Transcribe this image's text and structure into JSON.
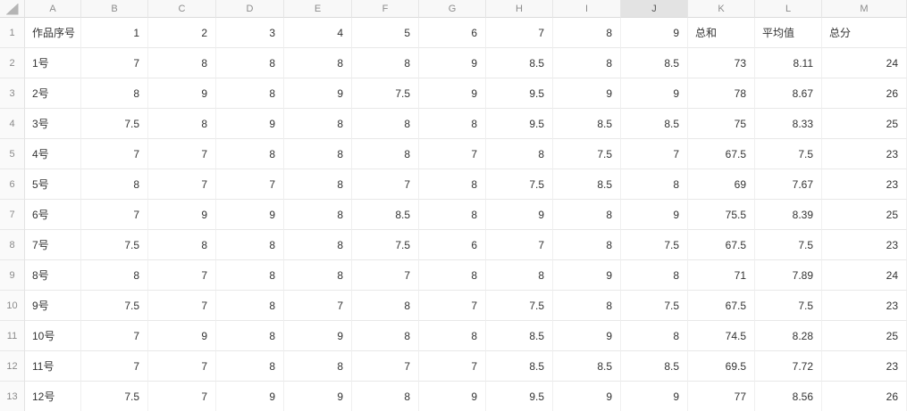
{
  "sheet": {
    "selected_column": "J",
    "column_headers": [
      "A",
      "B",
      "C",
      "D",
      "E",
      "F",
      "G",
      "H",
      "I",
      "J",
      "K",
      "L",
      "M"
    ],
    "rows": [
      {
        "num": 1,
        "cells": [
          "作品序号",
          "1",
          "2",
          "3",
          "4",
          "5",
          "6",
          "7",
          "8",
          "9",
          "总和",
          "平均值",
          "总分"
        ]
      },
      {
        "num": 2,
        "cells": [
          "1号",
          "7",
          "8",
          "8",
          "8",
          "8",
          "9",
          "8.5",
          "8",
          "8.5",
          "73",
          "8.11",
          "24"
        ]
      },
      {
        "num": 3,
        "cells": [
          "2号",
          "8",
          "9",
          "8",
          "9",
          "7.5",
          "9",
          "9.5",
          "9",
          "9",
          "78",
          "8.67",
          "26"
        ]
      },
      {
        "num": 4,
        "cells": [
          "3号",
          "7.5",
          "8",
          "9",
          "8",
          "8",
          "8",
          "9.5",
          "8.5",
          "8.5",
          "75",
          "8.33",
          "25"
        ]
      },
      {
        "num": 5,
        "cells": [
          "4号",
          "7",
          "7",
          "8",
          "8",
          "8",
          "7",
          "8",
          "7.5",
          "7",
          "67.5",
          "7.5",
          "23"
        ]
      },
      {
        "num": 6,
        "cells": [
          "5号",
          "8",
          "7",
          "7",
          "8",
          "7",
          "8",
          "7.5",
          "8.5",
          "8",
          "69",
          "7.67",
          "23"
        ]
      },
      {
        "num": 7,
        "cells": [
          "6号",
          "7",
          "9",
          "9",
          "8",
          "8.5",
          "8",
          "9",
          "8",
          "9",
          "75.5",
          "8.39",
          "25"
        ]
      },
      {
        "num": 8,
        "cells": [
          "7号",
          "7.5",
          "8",
          "8",
          "8",
          "7.5",
          "6",
          "7",
          "8",
          "7.5",
          "67.5",
          "7.5",
          "23"
        ]
      },
      {
        "num": 9,
        "cells": [
          "8号",
          "8",
          "7",
          "8",
          "8",
          "7",
          "8",
          "8",
          "9",
          "8",
          "71",
          "7.89",
          "24"
        ]
      },
      {
        "num": 10,
        "cells": [
          "9号",
          "7.5",
          "7",
          "8",
          "7",
          "8",
          "7",
          "7.5",
          "8",
          "7.5",
          "67.5",
          "7.5",
          "23"
        ]
      },
      {
        "num": 11,
        "cells": [
          "10号",
          "7",
          "9",
          "8",
          "9",
          "8",
          "8",
          "8.5",
          "9",
          "8",
          "74.5",
          "8.28",
          "25"
        ]
      },
      {
        "num": 12,
        "cells": [
          "11号",
          "7",
          "7",
          "8",
          "8",
          "7",
          "7",
          "8.5",
          "8.5",
          "8.5",
          "69.5",
          "7.72",
          "23"
        ]
      },
      {
        "num": 13,
        "cells": [
          "12号",
          "7.5",
          "7",
          "9",
          "9",
          "8",
          "9",
          "9.5",
          "9",
          "9",
          "77",
          "8.56",
          "26"
        ]
      }
    ]
  },
  "colors": {
    "header_bg": "#f8f8f8",
    "selected_header_bg": "#e3e3e3",
    "gridline": "#e8e8e8",
    "cell_text": "#333333",
    "header_text": "#8c8c8c"
  },
  "icons": {
    "select_all": "select-all-triangle-icon"
  }
}
